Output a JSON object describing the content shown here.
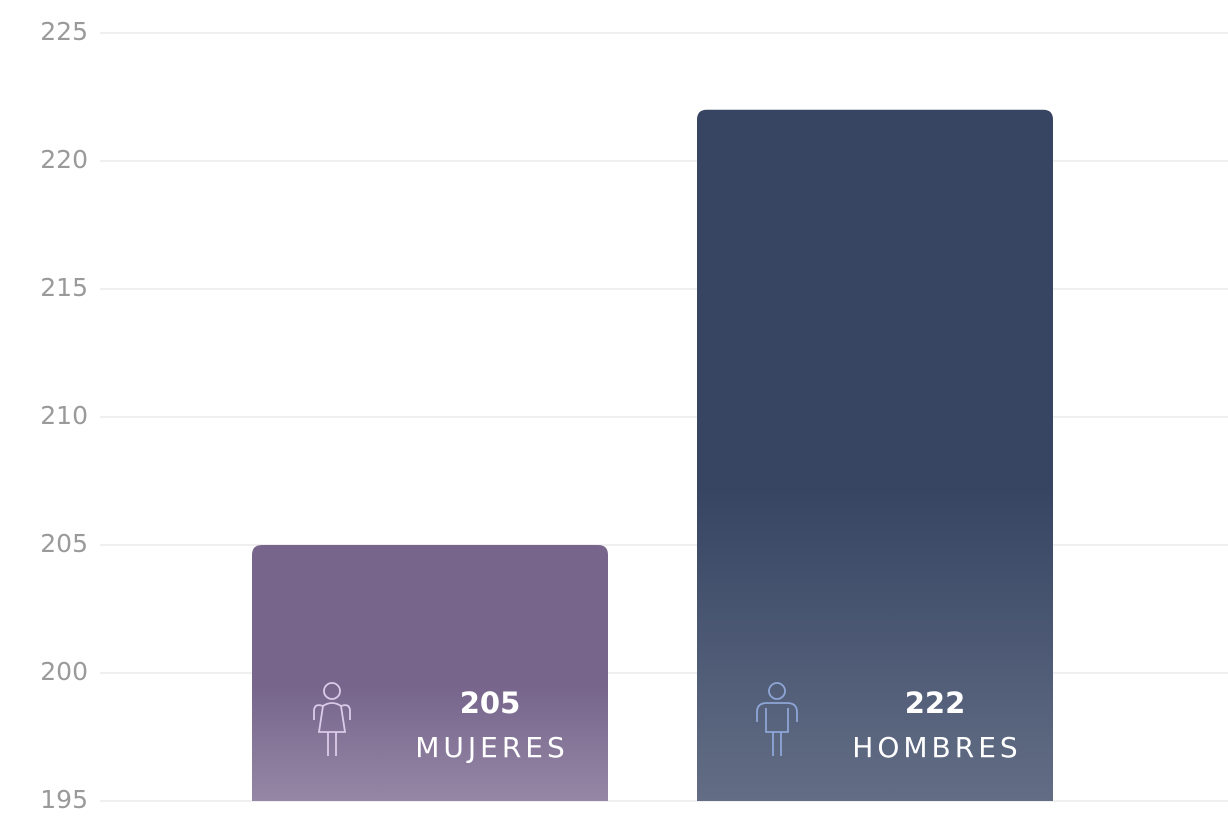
{
  "chart_data": {
    "type": "bar",
    "categories": [
      "MUJERES",
      "HOMBRES"
    ],
    "values": [
      205,
      222
    ],
    "colors": [
      "#77658c",
      "#374563"
    ],
    "ylim": [
      195,
      225
    ],
    "yticks": [
      195,
      200,
      205,
      210,
      215,
      220,
      225
    ],
    "grid": true
  }
}
